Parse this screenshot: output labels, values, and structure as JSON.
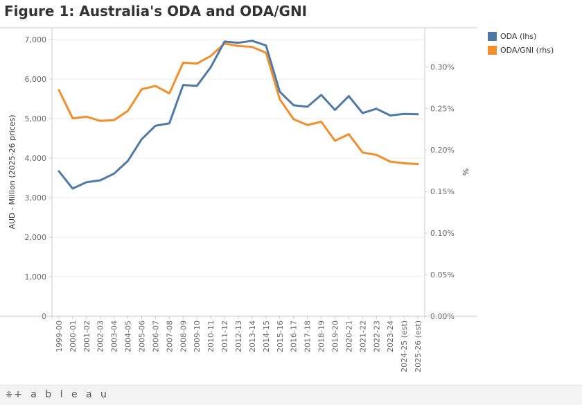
{
  "title": "Figure 1: Australia's ODA and ODA/GNI",
  "footer": {
    "brand_text": "+ a b l e a u",
    "brand_mark": "⁜"
  },
  "chart_data": {
    "type": "line",
    "title": "Figure 1: Australia's ODA and ODA/GNI",
    "xlabel": "",
    "ylabel": "AUD - Million (2025-26 prices)",
    "y2label": "%",
    "ylim": [
      0,
      7300
    ],
    "y2lim": [
      0,
      0.00347
    ],
    "yticks": [
      0,
      1000,
      2000,
      3000,
      4000,
      5000,
      6000,
      7000
    ],
    "ytick_labels": [
      "0",
      "1,000",
      "2,000",
      "3,000",
      "4,000",
      "5,000",
      "6,000",
      "7,000"
    ],
    "y2ticks": [
      0,
      0.0005,
      0.001,
      0.0015,
      0.002,
      0.0025,
      0.003
    ],
    "y2tick_labels": [
      "0.00%",
      "0.05%",
      "0.10%",
      "0.15%",
      "0.20%",
      "0.25%",
      "0.30%"
    ],
    "categories": [
      "1999-00",
      "2000-01",
      "2001-02",
      "2002-03",
      "2003-04",
      "2004-05",
      "2005-06",
      "2006-07",
      "2007-08",
      "2008-09",
      "2009-10",
      "2010-11",
      "2011-12",
      "2012-13",
      "2013-14",
      "2014-15",
      "2015-16",
      "2016-17",
      "2017-18",
      "2018-19",
      "2019-20",
      "2020-21",
      "2021-22",
      "2022-23",
      "2023-24",
      "2024-25 (est)",
      "2025-26 (est)"
    ],
    "series": [
      {
        "name": "ODA (lhs)",
        "axis": "left",
        "color": "#4e79a7",
        "values": [
          3670,
          3230,
          3390,
          3440,
          3610,
          3930,
          4480,
          4820,
          4880,
          5850,
          5830,
          6300,
          6950,
          6920,
          6970,
          6850,
          5680,
          5340,
          5300,
          5600,
          5220,
          5570,
          5140,
          5250,
          5080,
          5120,
          5110
        ]
      },
      {
        "name": "ODA/GNI (rhs)",
        "axis": "right",
        "color": "#f28e2b",
        "values": [
          0.00272,
          0.00238,
          0.0024,
          0.00235,
          0.00236,
          0.00247,
          0.00273,
          0.00277,
          0.00268,
          0.00305,
          0.00304,
          0.00313,
          0.00328,
          0.00325,
          0.00324,
          0.00317,
          0.00261,
          0.00237,
          0.0023,
          0.00234,
          0.00211,
          0.00219,
          0.00197,
          0.00194,
          0.00186,
          0.00184,
          0.00183
        ]
      }
    ]
  }
}
